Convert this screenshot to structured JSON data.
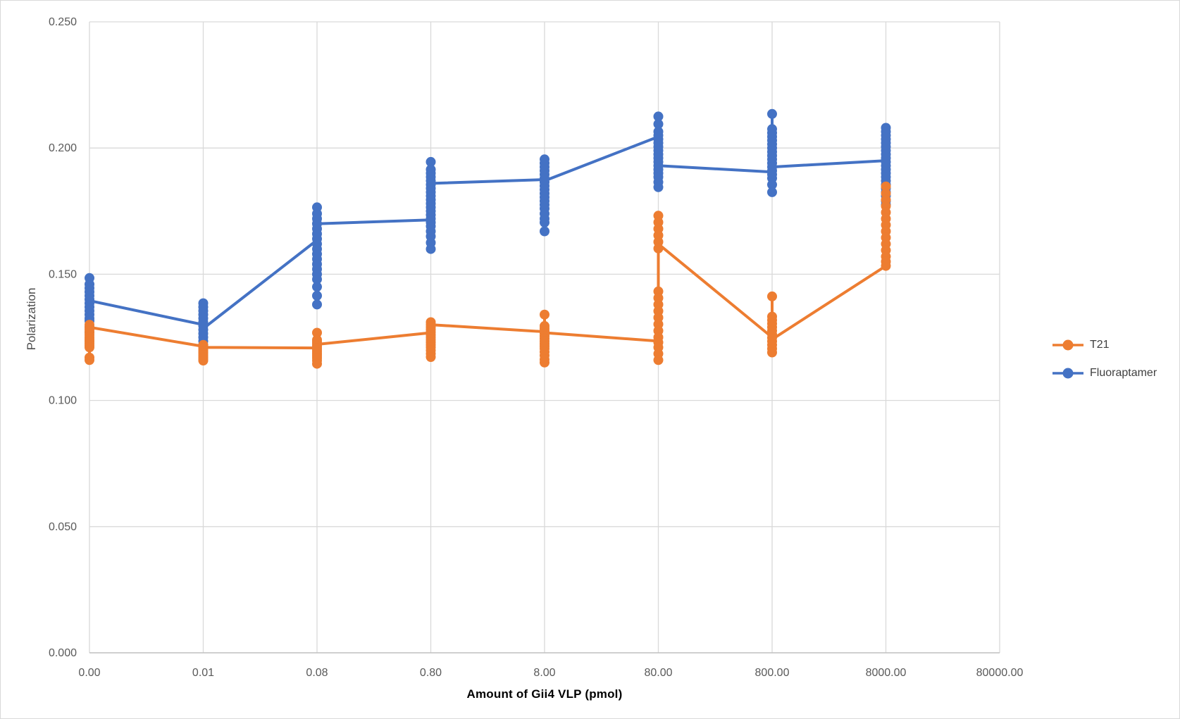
{
  "chart_data": {
    "type": "scatter",
    "title": "",
    "xlabel": "Amount of Gii4 VLP (pmol)",
    "ylabel": "Polarization",
    "x_tick_labels": [
      "0.00",
      "0.01",
      "0.08",
      "0.80",
      "8.00",
      "80.00",
      "800.00",
      "8000.00",
      "80000.00"
    ],
    "y_tick_labels": [
      "0.000",
      "0.050",
      "0.100",
      "0.150",
      "0.200",
      "0.250"
    ],
    "ylim": [
      0,
      0.25
    ],
    "grid": true,
    "legend_position": "right",
    "marker": "circle",
    "colors": {
      "grid": "#d9d9d9",
      "axis_line": "#bfbfbf",
      "tick_text": "#595959",
      "x_title_text": "#000000",
      "y_title_text": "#4d4d4d",
      "legend_text": "#404040",
      "background": "#ffffff"
    },
    "series": [
      {
        "name": "T21",
        "color": "#ED7D31",
        "clusters": [
          {
            "x": "0.00",
            "line_exit": 0.129,
            "points": [
              0.13,
              0.129,
              0.128,
              0.127,
              0.126,
              0.125,
              0.1242,
              0.1234,
              0.1226,
              0.1218,
              0.121,
              0.117,
              0.116
            ]
          },
          {
            "x": "0.01",
            "line_enter": 0.1214,
            "line_exit": 0.121,
            "points": [
              0.122,
              0.1212,
              0.1204,
              0.1196,
              0.1188,
              0.118,
              0.1172,
              0.1164,
              0.1158
            ]
          },
          {
            "x": "0.08",
            "line_enter": 0.1208,
            "line_exit": 0.1222,
            "points": [
              0.1268,
              0.124,
              0.1232,
              0.1224,
              0.1216,
              0.1208,
              0.12,
              0.1192,
              0.1184,
              0.1176,
              0.1168,
              0.1158,
              0.1145
            ]
          },
          {
            "x": "0.80",
            "line_enter": 0.1268,
            "line_exit": 0.13,
            "points": [
              0.131,
              0.13,
              0.129,
              0.128,
              0.127,
              0.126,
              0.125,
              0.124,
              0.123,
              0.122,
              0.121,
              0.1198,
              0.1185,
              0.1172
            ]
          },
          {
            "x": "8.00",
            "line_enter": 0.1272,
            "line_exit": 0.1268,
            "points": [
              0.134,
              0.1295,
              0.1285,
              0.1275,
              0.1265,
              0.1255,
              0.1245,
              0.1235,
              0.1225,
              0.1215,
              0.1205,
              0.1192,
              0.1178,
              0.1162,
              0.115
            ]
          },
          {
            "x": "80.00",
            "line_enter": 0.1235,
            "line_exit": 0.162,
            "points": [
              0.1732,
              0.1706,
              0.168,
              0.1654,
              0.1628,
              0.1602,
              0.1432,
              0.1406,
              0.138,
              0.1354,
              0.1328,
              0.1302,
              0.1276,
              0.125,
              0.123,
              0.121,
              0.1185,
              0.116
            ]
          },
          {
            "x": "800.00",
            "line_enter": 0.125,
            "line_exit": 0.1242,
            "points": [
              0.1412,
              0.1332,
              0.1318,
              0.1304,
              0.129,
              0.1276,
              0.1262,
              0.1248,
              0.1234,
              0.122,
              0.1205,
              0.119
            ]
          },
          {
            "x": "8000.00",
            "line_enter": 0.1533,
            "points": [
              0.1848,
              0.182,
              0.1795,
              0.177,
              0.1745,
              0.172,
              0.1695,
              0.167,
              0.1645,
              0.162,
              0.1595,
              0.157,
              0.155,
              0.1533
            ]
          }
        ]
      },
      {
        "name": "Fluoraptamer",
        "color": "#4472C4",
        "clusters": [
          {
            "x": "0.00",
            "line_exit": 0.1395,
            "points": [
              0.1485,
              0.146,
              0.1445,
              0.143,
              0.1415,
              0.14,
              0.1385,
              0.137,
              0.1355,
              0.134,
              0.1325,
              0.1315,
              0.129,
              0.127
            ]
          },
          {
            "x": "0.01",
            "line_enter": 0.13,
            "line_exit": 0.1285,
            "points": [
              0.1385,
              0.137,
              0.1355,
              0.134,
              0.1325,
              0.131,
              0.1295,
              0.128,
              0.1265,
              0.125,
              0.1235,
              0.122
            ]
          },
          {
            "x": "0.08",
            "line_enter": 0.1635,
            "line_exit": 0.17,
            "points": [
              0.1765,
              0.174,
              0.172,
              0.17,
              0.168,
              0.166,
              0.164,
              0.162,
              0.16,
              0.158,
              0.156,
              0.154,
              0.152,
              0.15,
              0.148,
              0.145,
              0.1415,
              0.138
            ]
          },
          {
            "x": "0.80",
            "line_enter": 0.1715,
            "line_exit": 0.186,
            "points": [
              0.1945,
              0.1915,
              0.19,
              0.1885,
              0.187,
              0.1855,
              0.184,
              0.1825,
              0.181,
              0.1795,
              0.178,
              0.1765,
              0.175,
              0.1735,
              0.172,
              0.1705,
              0.169,
              0.167,
              0.165,
              0.1625,
              0.16
            ]
          },
          {
            "x": "8.00",
            "line_enter": 0.1875,
            "line_exit": 0.187,
            "points": [
              0.1955,
              0.194,
              0.1925,
              0.191,
              0.1895,
              0.188,
              0.1865,
              0.185,
              0.1835,
              0.182,
              0.1805,
              0.179,
              0.1775,
              0.176,
              0.174,
              0.172,
              0.1705,
              0.167
            ]
          },
          {
            "x": "80.00",
            "line_enter": 0.2045,
            "line_exit": 0.193,
            "points": [
              0.2125,
              0.2095,
              0.2065,
              0.205,
              0.2035,
              0.202,
              0.2005,
              0.199,
              0.1975,
              0.196,
              0.1945,
              0.193,
              0.1915,
              0.19,
              0.1885,
              0.1865,
              0.1845
            ]
          },
          {
            "x": "800.00",
            "line_enter": 0.1905,
            "line_exit": 0.1925,
            "points": [
              0.2135,
              0.2075,
              0.206,
              0.2045,
              0.203,
              0.2015,
              0.2,
              0.1985,
              0.197,
              0.1955,
              0.194,
              0.1925,
              0.191,
              0.1895,
              0.188,
              0.1855,
              0.1825
            ]
          },
          {
            "x": "8000.00",
            "line_enter": 0.195,
            "points": [
              0.208,
              0.2065,
              0.205,
              0.2035,
              0.202,
              0.2005,
              0.199,
              0.1975,
              0.196,
              0.1945,
              0.193,
              0.1915,
              0.19,
              0.1885,
              0.187,
              0.1855,
              0.184,
              0.1825,
              0.181,
              0.179,
              0.1775
            ]
          }
        ]
      }
    ]
  }
}
